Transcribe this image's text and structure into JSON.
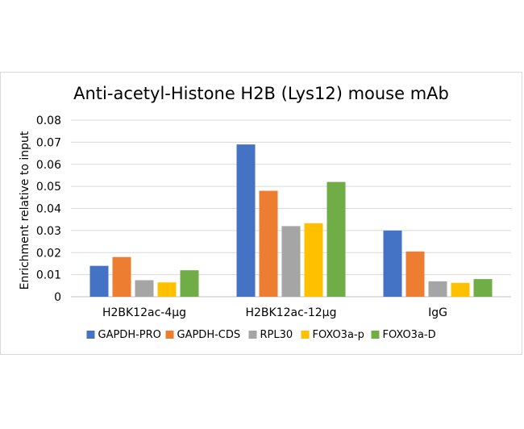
{
  "chart_data": {
    "type": "bar",
    "title": "Anti-acetyl-Histone H2B (Lys12) mouse mAb",
    "ylabel": "Enrichment relative to input",
    "xlabel": "",
    "categories": [
      "H2BK12ac-4µg",
      "H2BK12ac-12µg",
      "IgG"
    ],
    "ylim": [
      0,
      0.08
    ],
    "yticks": [
      0,
      0.01,
      0.02,
      0.03,
      0.04,
      0.05,
      0.06,
      0.07,
      0.08
    ],
    "ytick_labels": [
      "0",
      "0.01",
      "0.02",
      "0.03",
      "0.04",
      "0.05",
      "0.06",
      "0.07",
      "0.08"
    ],
    "grid": true,
    "legend_position": "bottom",
    "series": [
      {
        "name": "GAPDH-PRO",
        "color": "#4472C4",
        "values": [
          0.014,
          0.069,
          0.03
        ]
      },
      {
        "name": "GAPDH-CDS",
        "color": "#ED7D31",
        "values": [
          0.018,
          0.048,
          0.0205
        ]
      },
      {
        "name": "RPL30",
        "color": "#A5A5A5",
        "values": [
          0.0075,
          0.032,
          0.007
        ]
      },
      {
        "name": "FOXO3a-p",
        "color": "#FFC000",
        "values": [
          0.0065,
          0.0333,
          0.0063
        ]
      },
      {
        "name": "FOXO3a-D",
        "color": "#70AD47",
        "values": [
          0.012,
          0.052,
          0.008
        ]
      }
    ]
  }
}
